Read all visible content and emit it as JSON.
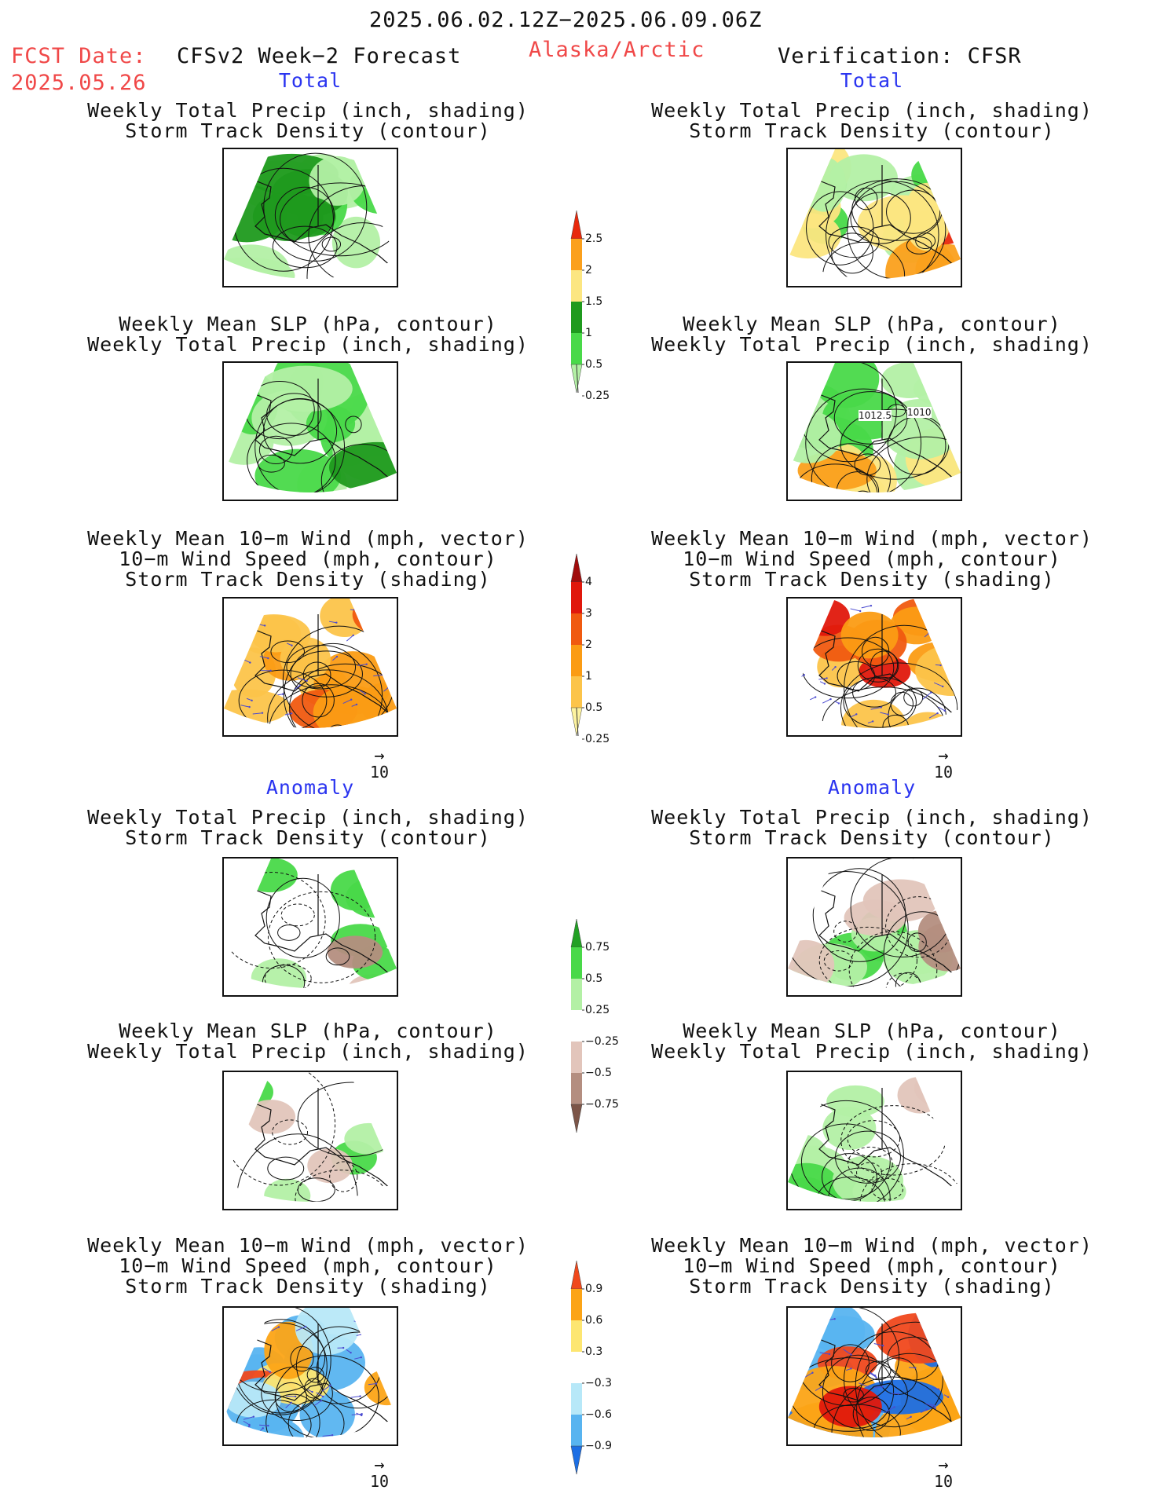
{
  "header": {
    "valid_period": "2025.06.02.12Z−2025.06.09.06Z",
    "fcst_date_label": "FCST Date:",
    "fcst_date": "2025.05.26",
    "model": "CFSv2 Week−2 Forecast",
    "region": "Alaska/Arctic",
    "verification": "Verification: CFSR"
  },
  "sections": {
    "total": "Total",
    "anomaly": "Anomaly"
  },
  "titles": {
    "precip_storm": [
      "Weekly Total Precip (inch, shading)",
      "Storm Track Density (contour)"
    ],
    "slp_precip": [
      "Weekly Mean SLP (hPa, contour)",
      "Weekly Total Precip (inch, shading)"
    ],
    "wind_storm": [
      "Weekly Mean 10−m Wind (mph, vector)",
      "10−m Wind Speed (mph, contour)",
      "Storm Track Density (shading)"
    ]
  },
  "vector_scale": "10",
  "contour_labels": [
    "1012.5",
    "1010"
  ],
  "colorbars": {
    "precip_total": {
      "labels": [
        "2.5",
        "2",
        "1.5",
        "1",
        "0.5",
        "0.25"
      ],
      "colors": [
        "#e8280c",
        "#fba01c",
        "#fce681",
        "#1f9a1e",
        "#49d949",
        "#b3f0a5"
      ]
    },
    "storm_total": {
      "labels": [
        "4",
        "3",
        "2",
        "1",
        "0.5",
        "0.25"
      ],
      "colors": [
        "#a00c0c",
        "#e0180c",
        "#f05a10",
        "#fb9c14",
        "#fcc44a",
        "#fdf39f"
      ]
    },
    "precip_anom": {
      "labels": [
        "0.75",
        "0.5",
        "0.25",
        "−0.25",
        "−0.5",
        "−0.75"
      ],
      "colors": [
        "#22a024",
        "#49d949",
        "#b3f0a5",
        "#ffffff",
        "#e2c5bb",
        "#b48e80",
        "#7c5548"
      ]
    },
    "storm_anom": {
      "labels": [
        "0.9",
        "0.6",
        "0.3",
        "−0.3",
        "−0.6",
        "−0.9"
      ],
      "colors": [
        "#f0481c",
        "#fca416",
        "#fde671",
        "#ffffff",
        "#b7e8f8",
        "#58b4f0",
        "#1c6ee4"
      ]
    }
  }
}
